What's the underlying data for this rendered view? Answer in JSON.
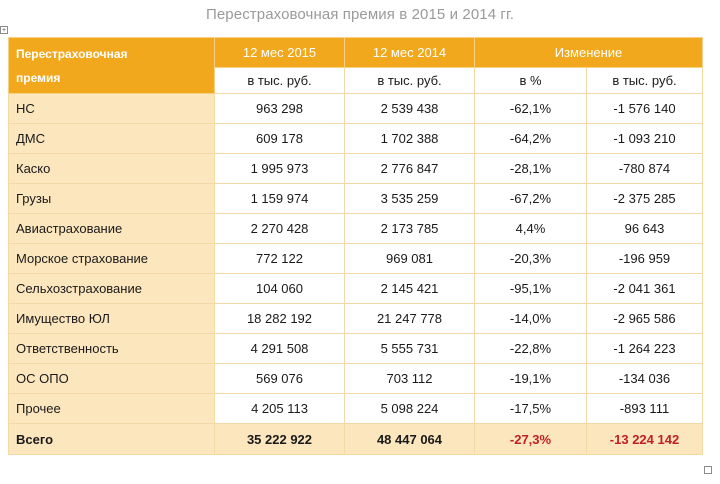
{
  "title": "Перестраховочная премия в 2015 и 2014 гг.",
  "header": {
    "corner_line1": "Перестраховочная",
    "corner_line2": "премия",
    "col_2015": "12 мес 2015",
    "col_2014": "12 мес 2014",
    "col_change": "Изменение",
    "unit_2015": "в тыс. руб.",
    "unit_2014": "в тыс. руб.",
    "unit_pct": "в %",
    "unit_change": "в тыс. руб."
  },
  "rows": [
    {
      "name": "НС",
      "v2015": "963 298",
      "v2014": "2 539 438",
      "pct": "-62,1%",
      "diff": "-1 576 140"
    },
    {
      "name": "ДМС",
      "v2015": "609 178",
      "v2014": "1 702 388",
      "pct": "-64,2%",
      "diff": "-1 093 210"
    },
    {
      "name": "Каско",
      "v2015": "1 995 973",
      "v2014": "2 776 847",
      "pct": "-28,1%",
      "diff": "-780 874"
    },
    {
      "name": "Грузы",
      "v2015": "1 159 974",
      "v2014": "3 535 259",
      "pct": "-67,2%",
      "diff": "-2 375 285"
    },
    {
      "name": "Авиастрахование",
      "v2015": "2 270 428",
      "v2014": "2 173 785",
      "pct": "4,4%",
      "diff": "96 643"
    },
    {
      "name": "Морское страхование",
      "v2015": "772 122",
      "v2014": "969 081",
      "pct": "-20,3%",
      "diff": "-196 959"
    },
    {
      "name": "Сельхозстрахование",
      "v2015": "104 060",
      "v2014": "2 145 421",
      "pct": "-95,1%",
      "diff": "-2 041 361"
    },
    {
      "name": "Имущество ЮЛ",
      "v2015": "18 282 192",
      "v2014": "21 247 778",
      "pct": "-14,0%",
      "diff": "-2 965 586"
    },
    {
      "name": "Ответственность",
      "v2015": "4 291 508",
      "v2014": "5 555 731",
      "pct": "-22,8%",
      "diff": "-1 264 223"
    },
    {
      "name": "ОС ОПО",
      "v2015": "569 076",
      "v2014": "703 112",
      "pct": "-19,1%",
      "diff": "-134 036"
    },
    {
      "name": "Прочее",
      "v2015": "4 205 113",
      "v2014": "5 098 224",
      "pct": "-17,5%",
      "diff": "-893 111"
    }
  ],
  "total": {
    "name": "Всего",
    "v2015": "35 222 922",
    "v2014": "48 447 064",
    "pct": "-27,3%",
    "diff": "-13 224 142"
  },
  "colors": {
    "header_bg": "#f2a81d",
    "category_bg": "#fbe6bd",
    "negative_total": "#c0202a",
    "title": "#9a9a9a"
  },
  "icons": {
    "table_handle": "move-handle-icon",
    "resize": "resize-handle-icon"
  }
}
